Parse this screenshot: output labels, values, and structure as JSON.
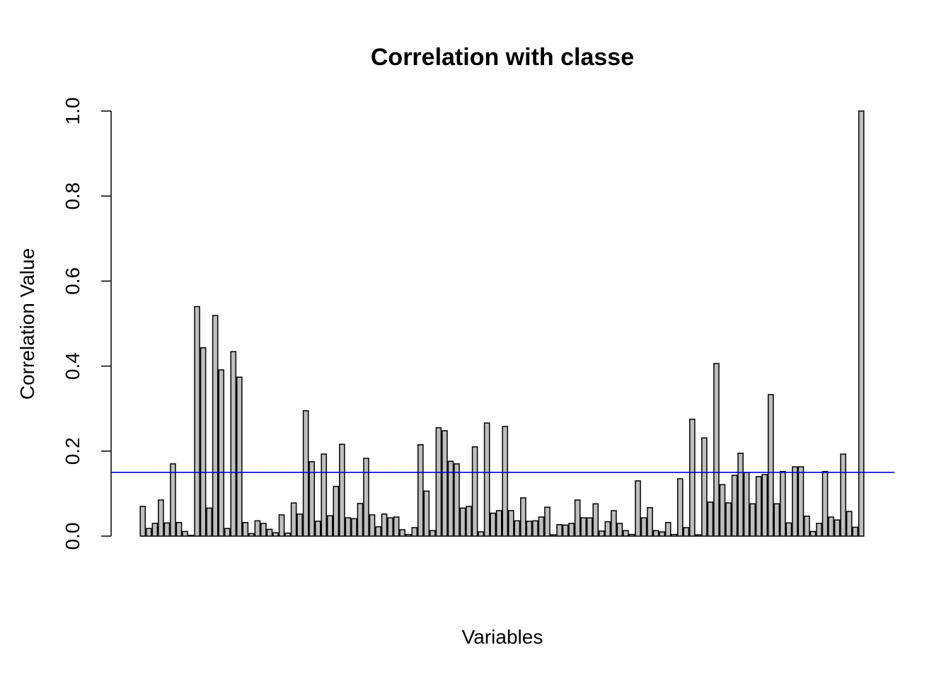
{
  "chart_data": {
    "type": "bar",
    "title": "Correlation with classe",
    "xlabel": "Variables",
    "ylabel": "Correlation Value",
    "ylim": [
      0,
      1
    ],
    "yticks": [
      0.0,
      0.2,
      0.4,
      0.6,
      0.8,
      1.0
    ],
    "ytick_labels": [
      "0.0",
      "0.2",
      "0.4",
      "0.6",
      "0.8",
      "1.0"
    ],
    "bar_fill": "#bebebe",
    "bar_stroke": "#000000",
    "threshold": 0.15,
    "threshold_color": "#0000cc",
    "values": [
      0.07,
      0.018,
      0.03,
      0.085,
      0.031,
      0.17,
      0.032,
      0.011,
      0.002,
      0.54,
      0.443,
      0.066,
      0.519,
      0.391,
      0.018,
      0.434,
      0.374,
      0.032,
      0.006,
      0.036,
      0.03,
      0.016,
      0.008,
      0.05,
      0.007,
      0.078,
      0.052,
      0.295,
      0.175,
      0.035,
      0.193,
      0.048,
      0.117,
      0.216,
      0.043,
      0.041,
      0.077,
      0.183,
      0.05,
      0.022,
      0.052,
      0.043,
      0.045,
      0.015,
      0.004,
      0.02,
      0.215,
      0.106,
      0.013,
      0.255,
      0.248,
      0.176,
      0.17,
      0.066,
      0.07,
      0.21,
      0.01,
      0.266,
      0.054,
      0.06,
      0.258,
      0.06,
      0.036,
      0.09,
      0.035,
      0.036,
      0.045,
      0.068,
      0.003,
      0.027,
      0.026,
      0.03,
      0.085,
      0.043,
      0.043,
      0.076,
      0.012,
      0.034,
      0.06,
      0.03,
      0.013,
      0.004,
      0.13,
      0.043,
      0.067,
      0.013,
      0.01,
      0.032,
      0.004,
      0.135,
      0.02,
      0.275,
      0.003,
      0.231,
      0.08,
      0.406,
      0.121,
      0.078,
      0.143,
      0.195,
      0.15,
      0.076,
      0.14,
      0.145,
      0.333,
      0.076,
      0.152,
      0.031,
      0.163,
      0.163,
      0.047,
      0.011,
      0.03,
      0.152,
      0.045,
      0.038,
      0.193,
      0.058,
      0.021,
      1.0
    ]
  }
}
